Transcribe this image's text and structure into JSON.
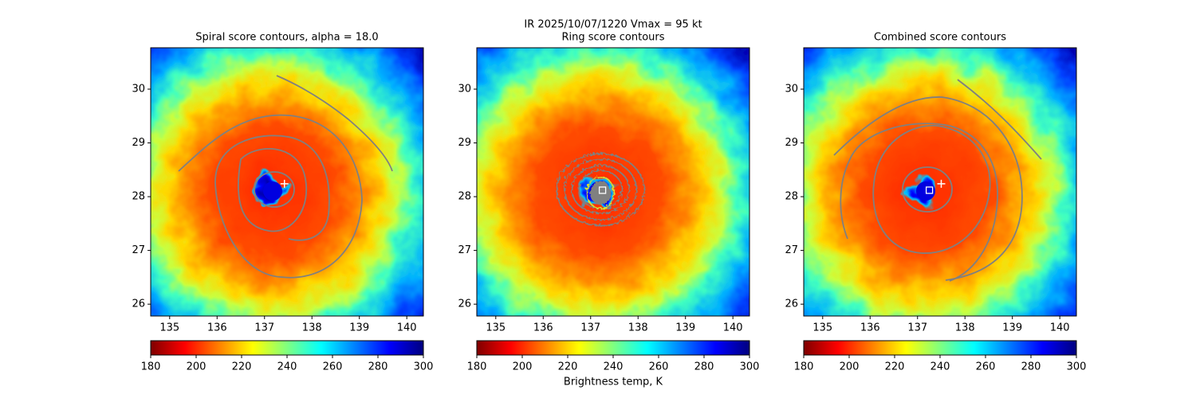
{
  "figure": {
    "title": "IR  2025/10/07/1220    Vmax = 95 kt"
  },
  "chart_data": [
    {
      "type": "image",
      "title": "Spiral score contours, alpha = 18.0",
      "xlim": [
        134.6,
        140.35
      ],
      "ylim": [
        25.78,
        30.77
      ],
      "xticks": [
        135,
        136,
        137,
        138,
        139,
        140
      ],
      "yticks": [
        26,
        27,
        28,
        29,
        30
      ],
      "colormap": "jet_r",
      "colorbar": {
        "lim": [
          180,
          300
        ],
        "ticks": [
          180,
          200,
          220,
          240,
          260,
          280,
          300
        ]
      },
      "markers": [
        {
          "x": 137.42,
          "y": 28.24,
          "shape": "plus",
          "color": "#ffffff"
        }
      ],
      "contours": "spiral"
    },
    {
      "type": "image",
      "title": "Ring score contours",
      "xlim": [
        134.6,
        140.35
      ],
      "ylim": [
        25.78,
        30.77
      ],
      "xticks": [
        135,
        136,
        137,
        138,
        139,
        140
      ],
      "yticks": [
        26,
        27,
        28,
        29,
        30
      ],
      "colormap": "jet_r",
      "colorbar": {
        "lim": [
          180,
          300
        ],
        "ticks": [
          180,
          200,
          220,
          240,
          260,
          280,
          300
        ],
        "label": "Brightness temp, K"
      },
      "markers": [
        {
          "x": 137.25,
          "y": 28.12,
          "shape": "square",
          "color": "#ffffff"
        }
      ],
      "contours": "ring"
    },
    {
      "type": "image",
      "title": "Combined score contours",
      "xlim": [
        134.6,
        140.35
      ],
      "ylim": [
        25.78,
        30.77
      ],
      "xticks": [
        135,
        136,
        137,
        138,
        139,
        140
      ],
      "yticks": [
        26,
        27,
        28,
        29,
        30
      ],
      "colormap": "jet_r",
      "colorbar": {
        "lim": [
          180,
          300
        ],
        "ticks": [
          180,
          200,
          220,
          240,
          260,
          280,
          300
        ]
      },
      "markers": [
        {
          "x": 137.25,
          "y": 28.12,
          "shape": "square",
          "color": "#ffffff"
        },
        {
          "x": 137.5,
          "y": 28.24,
          "shape": "plus",
          "color": "#ffffff"
        }
      ],
      "contours": "combined"
    }
  ]
}
